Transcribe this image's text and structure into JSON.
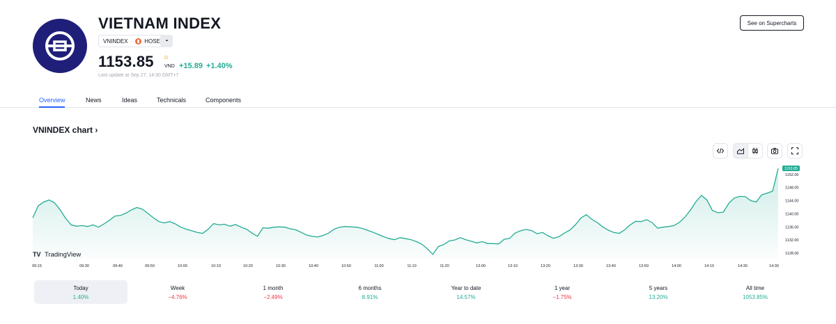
{
  "header": {
    "title": "VIETNAM INDEX",
    "ticker": "VNINDEX",
    "exchange": "HOSE",
    "more": "•••",
    "price": "1153.85",
    "price_marker": "D",
    "currency": "VND",
    "change_abs": "+15.89",
    "change_pct": "+1.40%",
    "last_update": "Last update at Sep 27, 14:30 GMT+7",
    "supercharts_button": "See on Supercharts"
  },
  "tabs": [
    "Overview",
    "News",
    "Ideas",
    "Technicals",
    "Components"
  ],
  "chart_section": {
    "title": "VNINDEX chart",
    "watermark": "TradingView",
    "icons": [
      "embed-code-icon",
      "area-chart-icon",
      "candlestick-icon",
      "camera-icon",
      "fullscreen-icon"
    ],
    "line_color": "#22ab94"
  },
  "chart_data": {
    "type": "area",
    "series": [
      {
        "values": [
          1138.8,
          1142.4,
          1143.6,
          1144.2,
          1143.3,
          1141.2,
          1138.6,
          1136.6,
          1136.2,
          1136.4,
          1136.1,
          1136.6,
          1135.9,
          1136.9,
          1138.0,
          1139.3,
          1139.5,
          1140.2,
          1141.2,
          1141.9,
          1141.4,
          1140.1,
          1138.8,
          1137.6,
          1137.2,
          1137.6,
          1136.9,
          1135.9,
          1135.3,
          1134.8,
          1134.3,
          1134.0,
          1135.3,
          1137.0,
          1136.6,
          1136.8,
          1136.2,
          1136.7,
          1135.9,
          1135.3,
          1134.1,
          1133.1,
          1135.7,
          1135.6,
          1135.9,
          1136.0,
          1135.9,
          1135.4,
          1135.1,
          1134.3,
          1133.5,
          1133.1,
          1132.9,
          1133.4,
          1134.1,
          1135.3,
          1135.9,
          1136.1,
          1136.0,
          1135.9,
          1135.6,
          1135.0,
          1134.4,
          1133.7,
          1133.0,
          1132.4,
          1132.1,
          1132.7,
          1132.4,
          1132.1,
          1131.5,
          1130.7,
          1129.3,
          1127.6,
          1130.0,
          1130.6,
          1131.7,
          1132.0,
          1132.7,
          1132.1,
          1131.6,
          1131.1,
          1131.5,
          1130.9,
          1130.9,
          1130.8,
          1132.2,
          1132.5,
          1134.1,
          1134.8,
          1135.2,
          1134.9,
          1133.9,
          1134.3,
          1133.3,
          1132.5,
          1133.0,
          1134.1,
          1135.0,
          1136.6,
          1138.7,
          1139.7,
          1138.3,
          1137.3,
          1136.0,
          1135.0,
          1134.3,
          1134.0,
          1135.1,
          1136.6,
          1137.7,
          1137.6,
          1138.2,
          1137.3,
          1135.6,
          1135.9,
          1136.1,
          1136.4,
          1137.4,
          1139.0,
          1141.1,
          1143.7,
          1145.6,
          1144.2,
          1141.0,
          1140.3,
          1140.5,
          1143.2,
          1144.8,
          1145.3,
          1145.2,
          1144.0,
          1143.6,
          1145.8,
          1146.3,
          1146.9,
          1153.85
        ]
      }
    ],
    "x_ticks": [
      "09:15",
      "09:30",
      "09:40",
      "09:50",
      "10:00",
      "10:10",
      "10:20",
      "10:30",
      "10:40",
      "10:50",
      "11:00",
      "11:10",
      "11:20",
      "13:00",
      "13:10",
      "13:20",
      "13:30",
      "13:40",
      "13:50",
      "14:00",
      "14:10",
      "14:30",
      "14:30"
    ],
    "y_ticks": [
      "1152.00",
      "1148.00",
      "1144.00",
      "1140.00",
      "1136.00",
      "1132.00",
      "1128.00"
    ],
    "y_tick_values": [
      1152,
      1148,
      1144,
      1140,
      1136,
      1132,
      1128
    ],
    "ylim": [
      1126.3,
      1156.0
    ],
    "last_value_label": "1153.85"
  },
  "periods": [
    {
      "label": "Today",
      "value": "1.40%",
      "sign": "pos"
    },
    {
      "label": "Week",
      "value": "−4.76%",
      "sign": "neg"
    },
    {
      "label": "1 month",
      "value": "−2.49%",
      "sign": "neg"
    },
    {
      "label": "6 months",
      "value": "8.91%",
      "sign": "pos"
    },
    {
      "label": "Year to date",
      "value": "14.57%",
      "sign": "pos"
    },
    {
      "label": "1 year",
      "value": "−1.75%",
      "sign": "neg"
    },
    {
      "label": "5 years",
      "value": "13.20%",
      "sign": "pos"
    },
    {
      "label": "All time",
      "value": "1053.85%",
      "sign": "pos"
    }
  ]
}
